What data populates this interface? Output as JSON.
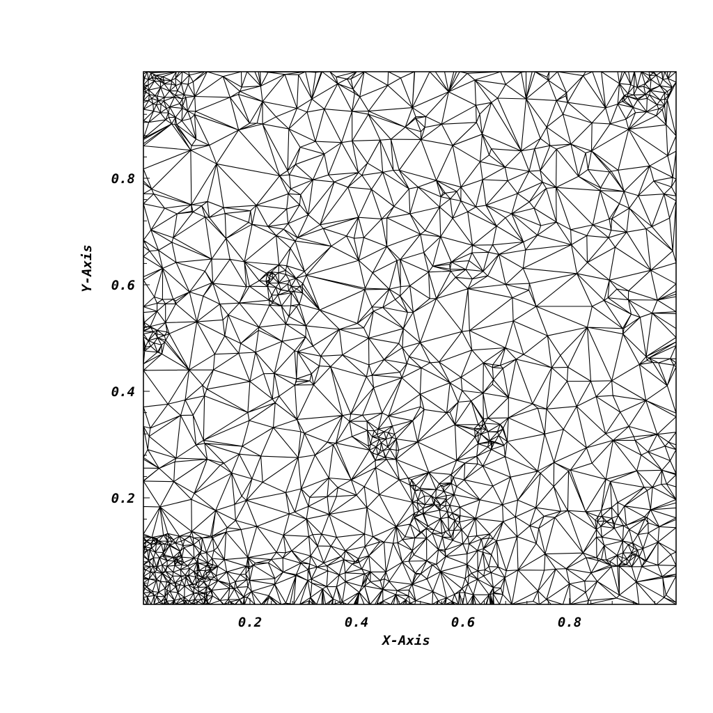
{
  "chart_data": {
    "type": "scatter",
    "subtype": "triangulation-mesh",
    "title": "",
    "xlabel": "X-Axis",
    "ylabel": "Y-Axis",
    "xlim": [
      0,
      1
    ],
    "ylim": [
      0,
      1
    ],
    "x_ticks": [
      0.2,
      0.4,
      0.6,
      0.8
    ],
    "x_tick_labels": [
      "0.2",
      "0.4",
      "0.6",
      "0.8"
    ],
    "y_ticks": [
      0.2,
      0.4,
      0.6,
      0.8
    ],
    "y_tick_labels": [
      "0.2",
      "0.4",
      "0.6",
      "0.8"
    ],
    "minor_ticks_per_major": 5,
    "grid": false,
    "legend": "none",
    "line_color": "#000000",
    "approx_point_count": 1800,
    "dense_regions_note": [
      "lower-left",
      "bottom edge",
      "top-left corner",
      "top-right corner"
    ]
  }
}
